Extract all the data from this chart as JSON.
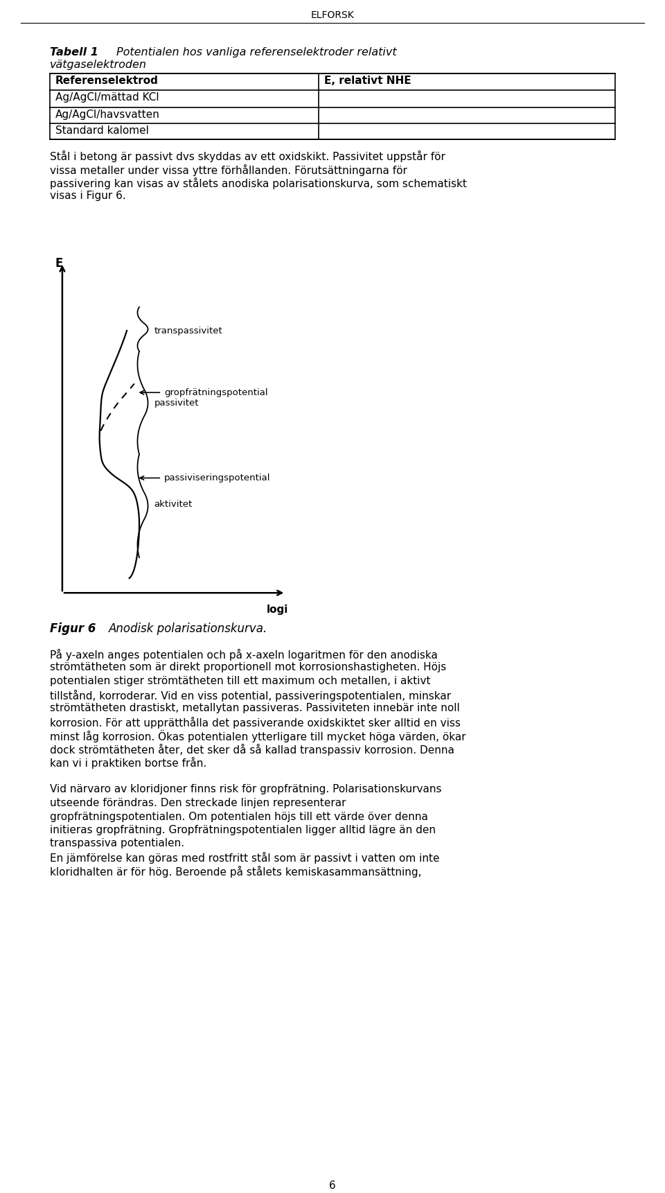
{
  "page_header": "ELFORSK",
  "page_number": "6",
  "background_color": "#ffffff",
  "tabell_bold": "Tabell 1",
  "tabell_title_italic": "Potentialen hos vanliga referenselektroder relativt",
  "tabell_title_line2": "vätgaselektroden",
  "table_headers": [
    "Referenselektrod",
    "E, relativt NHE"
  ],
  "table_rows": [
    [
      "Ag/AgCl/mättad KCl",
      ""
    ],
    [
      "Ag/AgCl/havsvatten",
      ""
    ],
    [
      "Standard kalomel",
      ""
    ]
  ],
  "paragraph1_lines": [
    "Stål i betong är passivt dvs skyddas av ett oxidskikt. Passivitet uppstår för",
    "vissa metaller under vissa yttre förhållanden. Förutsättningarna för",
    "passivering kan visas av stålets anodiska polarisationskurva, som schematiskt",
    "visas i Figur 6."
  ],
  "figure_label_bold": "Figur 6",
  "figure_label_italic": "Anodisk polarisationskurva.",
  "label_transpassivitet": "transpassivitet",
  "label_passivitet": "passivitet",
  "label_aktivitet": "aktivitet",
  "label_gropfratning": "← gropfrätningspotential",
  "label_passiviseringspotential": "← passiviseringspotential",
  "axis_e_label": "E",
  "axis_logi_label": "logi",
  "paragraph2_lines": [
    "På y-axeln anges potentialen och på x-axeln logaritmen för den anodiska",
    "strömtätheten som är direkt proportionell mot korrosionshastigheten. Höjs",
    "potentialen stiger strömtätheten till ett maximum och metallen, i aktivt",
    "tillstånd, korroderar. Vid en viss potential, passiveringspotentialen, minskar",
    "strömtätheten drastiskt, metallytan passiveras. Passiviteten innebär inte noll",
    "korrosion. För att upprätthålla det passiverande oxidskiktet sker alltid en viss",
    "minst låg korrosion. Ökas potentialen ytterligare till mycket höga värden, ökar",
    "dock strömtätheten åter, det sker då så kallad transpassiv korrosion. Denna",
    "kan vi i praktiken bortse från."
  ],
  "paragraph3_lines": [
    "Vid närvaro av kloridjoner finns risk för gropfrätning. Polarisationskurvans",
    "utseende förändras. Den streckade linjen representerar",
    "gropfrätningspotentialen. Om potentialen höjs till ett värde över denna",
    "initieras gropfrätning. Gropfrätningspotentialen ligger alltid lägre än den",
    "transpassiva potentialen.",
    "En jämförelse kan göras med rostfritt stål som är passivt i vatten om inte",
    "kloridhalten är för hög. Beroende på stålets kemiskasammansättning,"
  ]
}
